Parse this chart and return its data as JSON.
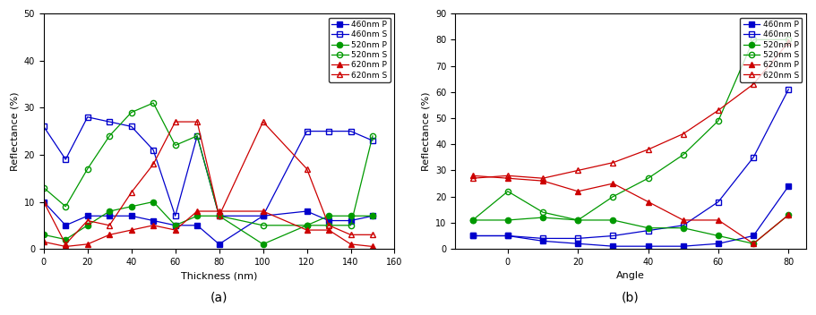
{
  "chart_a": {
    "xlabel": "Thickness (nm)",
    "ylabel": "Reflectance (%)",
    "xlim": [
      0,
      160
    ],
    "ylim": [
      0,
      50
    ],
    "yticks": [
      0,
      10,
      20,
      30,
      40,
      50
    ],
    "xticks": [
      0,
      20,
      40,
      60,
      80,
      100,
      120,
      140,
      160
    ],
    "series": {
      "460nm_P": {
        "x": [
          0,
          10,
          20,
          30,
          40,
          50,
          60,
          70,
          80,
          100,
          120,
          130,
          140,
          150
        ],
        "y": [
          10,
          5,
          7,
          7,
          7,
          6,
          5,
          5,
          1,
          7,
          8,
          6,
          6,
          7
        ],
        "color": "#0000cc",
        "marker": "s",
        "fillstyle": "full",
        "label": "460nm P"
      },
      "460nm_S": {
        "x": [
          0,
          10,
          20,
          30,
          40,
          50,
          60,
          70,
          80,
          100,
          120,
          130,
          140,
          150
        ],
        "y": [
          26,
          19,
          28,
          27,
          26,
          21,
          7,
          24,
          7,
          7,
          25,
          25,
          25,
          23
        ],
        "color": "#0000cc",
        "marker": "s",
        "fillstyle": "none",
        "label": "460nm S"
      },
      "520nm_P": {
        "x": [
          0,
          10,
          20,
          30,
          40,
          50,
          60,
          70,
          80,
          100,
          120,
          130,
          140,
          150
        ],
        "y": [
          3,
          2,
          5,
          8,
          9,
          10,
          5,
          7,
          7,
          1,
          5,
          7,
          7,
          7
        ],
        "color": "#009900",
        "marker": "o",
        "fillstyle": "full",
        "label": "520nm P"
      },
      "520nm_S": {
        "x": [
          0,
          10,
          20,
          30,
          40,
          50,
          60,
          70,
          80,
          100,
          120,
          130,
          140,
          150
        ],
        "y": [
          13,
          9,
          17,
          24,
          29,
          31,
          22,
          24,
          7,
          5,
          5,
          5,
          5,
          24
        ],
        "color": "#009900",
        "marker": "o",
        "fillstyle": "none",
        "label": "520nm S"
      },
      "620nm_P": {
        "x": [
          0,
          10,
          20,
          30,
          40,
          50,
          60,
          70,
          80,
          100,
          120,
          130,
          140,
          150
        ],
        "y": [
          1.5,
          0.5,
          1,
          3,
          4,
          5,
          4,
          8,
          8,
          8,
          4,
          4,
          1,
          0.5
        ],
        "color": "#cc0000",
        "marker": "^",
        "fillstyle": "full",
        "label": "620nm P"
      },
      "620nm_S": {
        "x": [
          0,
          10,
          20,
          30,
          40,
          50,
          60,
          70,
          80,
          100,
          120,
          130,
          140,
          150
        ],
        "y": [
          10,
          1,
          6,
          5,
          12,
          18,
          27,
          27,
          7,
          27,
          17,
          5,
          3,
          3
        ],
        "color": "#cc0000",
        "marker": "^",
        "fillstyle": "none",
        "label": "620nm S"
      }
    }
  },
  "chart_b": {
    "xlabel": "Angle",
    "ylabel": "Reflectance (%)",
    "xlim": [
      -15,
      85
    ],
    "ylim": [
      0,
      90
    ],
    "yticks": [
      0,
      10,
      20,
      30,
      40,
      50,
      60,
      70,
      80,
      90
    ],
    "xticks": [
      0,
      20,
      40,
      60,
      80
    ],
    "series": {
      "460nm_P": {
        "x": [
          -10,
          0,
          10,
          20,
          30,
          40,
          50,
          60,
          70,
          80
        ],
        "y": [
          5,
          5,
          3,
          2,
          1,
          1,
          1,
          2,
          5,
          24
        ],
        "color": "#0000cc",
        "marker": "s",
        "fillstyle": "full",
        "label": "460nm P"
      },
      "460nm_S": {
        "x": [
          -10,
          0,
          10,
          20,
          30,
          40,
          50,
          60,
          70,
          80
        ],
        "y": [
          5,
          5,
          4,
          4,
          5,
          7,
          9,
          18,
          35,
          61
        ],
        "color": "#0000cc",
        "marker": "s",
        "fillstyle": "none",
        "label": "460nm S"
      },
      "520nm_P": {
        "x": [
          -10,
          0,
          10,
          20,
          30,
          40,
          50,
          60,
          70,
          80
        ],
        "y": [
          11,
          11,
          12,
          11,
          11,
          8,
          8,
          5,
          2,
          13
        ],
        "color": "#009900",
        "marker": "o",
        "fillstyle": "full",
        "label": "520nm P"
      },
      "520nm_S": {
        "x": [
          -10,
          0,
          10,
          20,
          30,
          40,
          50,
          60,
          70,
          80
        ],
        "y": [
          11,
          22,
          14,
          11,
          20,
          27,
          36,
          49,
          80,
          80
        ],
        "color": "#009900",
        "marker": "o",
        "fillstyle": "none",
        "label": "520nm S"
      },
      "620nm_P": {
        "x": [
          -10,
          0,
          10,
          20,
          30,
          40,
          50,
          60,
          70,
          80
        ],
        "y": [
          28,
          27,
          26,
          22,
          25,
          18,
          11,
          11,
          2,
          13
        ],
        "color": "#cc0000",
        "marker": "^",
        "fillstyle": "full",
        "label": "620nm P"
      },
      "620nm_S": {
        "x": [
          -10,
          0,
          10,
          20,
          30,
          40,
          50,
          60,
          70,
          80
        ],
        "y": [
          27,
          28,
          27,
          30,
          33,
          38,
          44,
          53,
          63,
          79
        ],
        "color": "#cc0000",
        "marker": "^",
        "fillstyle": "none",
        "label": "620nm S"
      }
    }
  },
  "background_color": "#ffffff",
  "label_a": "(a)",
  "label_b": "(b)"
}
